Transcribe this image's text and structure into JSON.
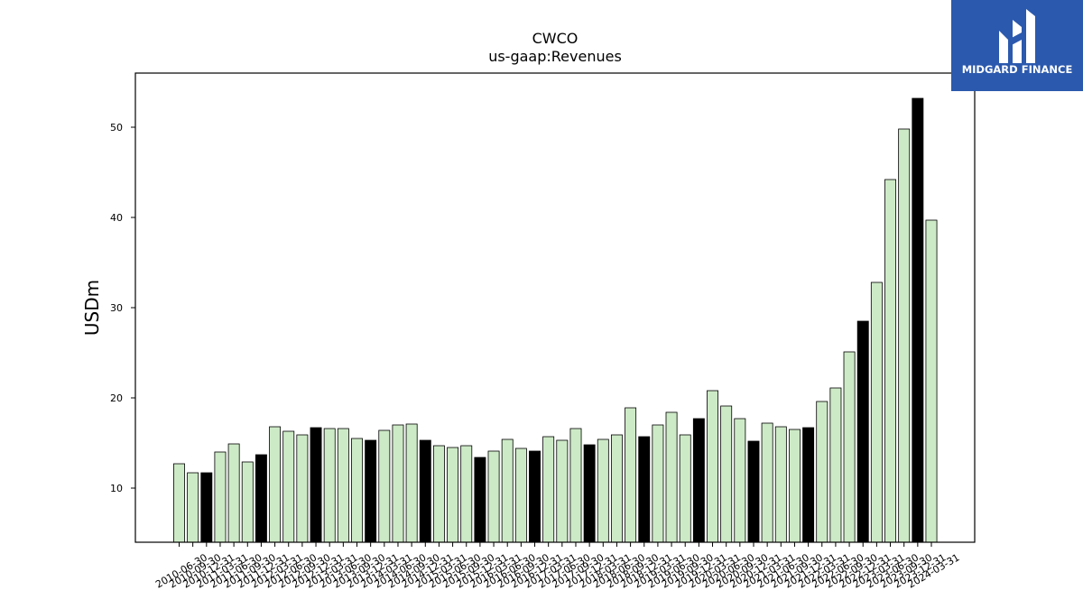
{
  "chart_data": {
    "type": "bar",
    "title": "CWCO",
    "subtitle": "us-gaap:Revenues",
    "xlabel": "",
    "ylabel": "USDm",
    "ylim": [
      4,
      56
    ],
    "yticks": [
      10,
      20,
      30,
      40,
      50
    ],
    "grid": false,
    "colors": {
      "regular": "#cdeac6",
      "highlight": "#000000",
      "edge": "#000000"
    },
    "categories": [
      "2010-06-30",
      "2010-09-30",
      "2010-12-31",
      "2011-03-31",
      "2011-06-30",
      "2011-09-30",
      "2011-12-31",
      "2012-03-31",
      "2012-06-30",
      "2012-09-30",
      "2012-12-31",
      "2013-03-31",
      "2013-06-30",
      "2013-09-30",
      "2013-12-31",
      "2014-03-31",
      "2014-06-30",
      "2014-09-30",
      "2014-12-31",
      "2015-03-31",
      "2015-06-30",
      "2015-09-30",
      "2015-12-31",
      "2016-03-31",
      "2016-06-30",
      "2016-09-30",
      "2016-12-31",
      "2017-03-31",
      "2017-06-30",
      "2017-09-30",
      "2017-12-31",
      "2018-03-31",
      "2018-06-30",
      "2018-09-30",
      "2018-12-31",
      "2019-03-31",
      "2019-06-30",
      "2019-09-30",
      "2019-12-31",
      "2020-03-31",
      "2020-06-30",
      "2020-09-30",
      "2020-12-31",
      "2021-03-31",
      "2021-06-30",
      "2021-09-30",
      "2021-12-31",
      "2022-03-31",
      "2022-06-30",
      "2022-09-30",
      "2022-12-31",
      "2023-03-31",
      "2023-06-30",
      "2023-09-30",
      "2023-12-31",
      "2024-03-31"
    ],
    "values": [
      12.7,
      11.7,
      11.7,
      14.0,
      14.9,
      12.9,
      13.7,
      16.8,
      16.3,
      15.9,
      16.7,
      16.6,
      16.6,
      15.5,
      15.3,
      16.4,
      17.0,
      17.1,
      15.3,
      14.7,
      14.5,
      14.7,
      13.4,
      14.1,
      15.4,
      14.4,
      14.1,
      15.7,
      15.3,
      16.6,
      14.8,
      15.4,
      15.9,
      18.9,
      15.7,
      17.0,
      18.4,
      15.9,
      17.7,
      20.8,
      19.1,
      17.7,
      15.2,
      17.2,
      16.8,
      16.5,
      16.7,
      19.6,
      21.1,
      25.1,
      28.5,
      32.8,
      44.2,
      49.8,
      53.2,
      39.7
    ],
    "highlight": [
      false,
      false,
      true,
      false,
      false,
      false,
      true,
      false,
      false,
      false,
      true,
      false,
      false,
      false,
      true,
      false,
      false,
      false,
      true,
      false,
      false,
      false,
      true,
      false,
      false,
      false,
      true,
      false,
      false,
      false,
      true,
      false,
      false,
      false,
      true,
      false,
      false,
      false,
      true,
      false,
      false,
      false,
      true,
      false,
      false,
      false,
      true,
      false,
      false,
      false,
      true,
      false,
      false,
      false,
      true,
      false
    ]
  },
  "logo": {
    "text": "MIDGARD FINANCE",
    "background": "#2b59ad"
  }
}
